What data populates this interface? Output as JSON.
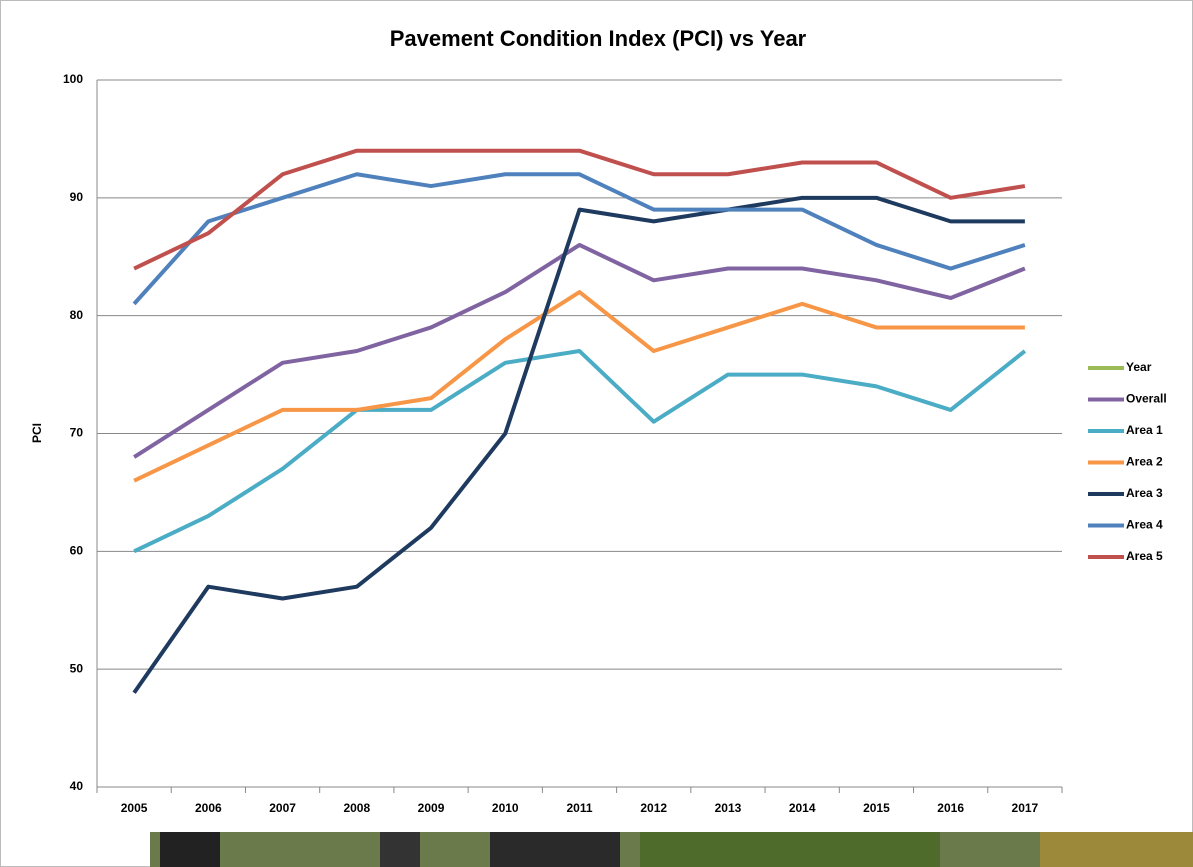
{
  "chart_data": {
    "type": "line",
    "title": "Pavement Condition Index (PCI) vs Year",
    "y_label": "PCI",
    "categories": [
      "2005",
      "2006",
      "2007",
      "2008",
      "2009",
      "2010",
      "2011",
      "2012",
      "2013",
      "2014",
      "2015",
      "2016",
      "2017"
    ],
    "series": [
      {
        "name": "Year",
        "color": "#9bbb59",
        "values": [
          null,
          null,
          null,
          null,
          null,
          null,
          null,
          null,
          null,
          null,
          null,
          null,
          null
        ]
      },
      {
        "name": "Overall",
        "color": "#8064a2",
        "values": [
          68,
          72,
          76,
          77,
          79,
          82,
          86,
          83,
          84,
          84,
          83,
          81.5,
          84
        ]
      },
      {
        "name": "Area 1",
        "color": "#4bacc6",
        "values": [
          60,
          63,
          67,
          72,
          72,
          76,
          77,
          71,
          75,
          75,
          74,
          72,
          77
        ]
      },
      {
        "name": "Area 2",
        "color": "#f79646",
        "values": [
          66,
          69,
          72,
          72,
          73,
          78,
          82,
          77,
          79,
          81,
          79,
          79,
          79
        ]
      },
      {
        "name": "Area 3",
        "color": "#1f3a5f",
        "values": [
          48,
          57,
          56,
          57,
          62,
          70,
          89,
          88,
          89,
          90,
          90,
          88,
          88
        ]
      },
      {
        "name": "Area 4",
        "color": "#4f81bd",
        "values": [
          81,
          88,
          90,
          92,
          91,
          92,
          92,
          89,
          89,
          89,
          86,
          84,
          86
        ]
      },
      {
        "name": "Area 5",
        "color": "#c0504d",
        "values": [
          84,
          87,
          92,
          94,
          94,
          94,
          94,
          92,
          92,
          93,
          93,
          90,
          91
        ]
      }
    ],
    "ylim": [
      40,
      100
    ],
    "yticks": [
      40,
      50,
      60,
      70,
      80,
      90,
      100
    ],
    "grid": true,
    "legend": "right"
  }
}
